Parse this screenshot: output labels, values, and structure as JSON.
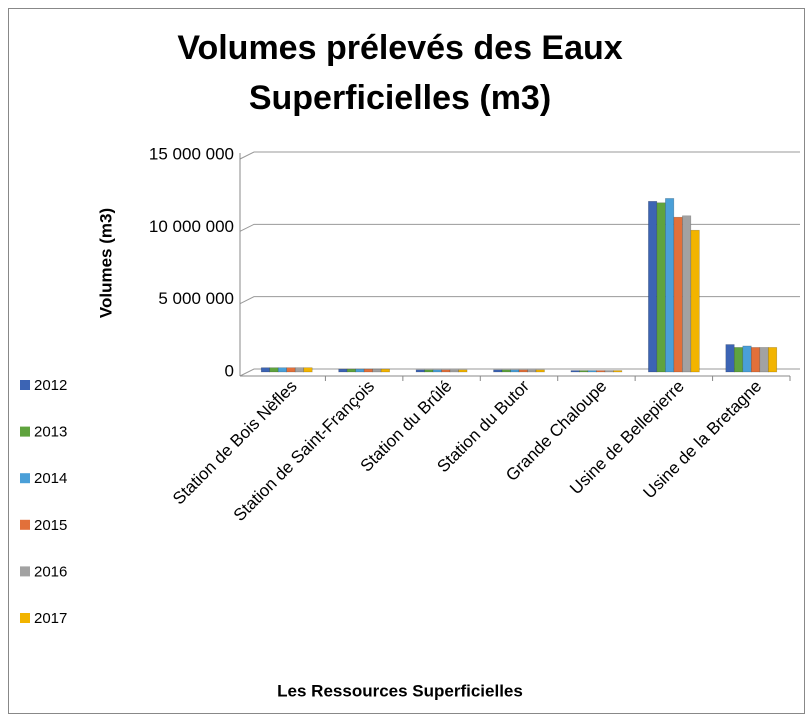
{
  "chart_data": {
    "type": "bar",
    "title": "Volumes prélevés des Eaux Superficielles (m3)",
    "y_label": "Volumes (m3)",
    "x_label": "Les Ressources Superficielles",
    "categories": [
      "Station de Bois Nèfles",
      "Station de Saint-François",
      "Station du Brûlé",
      "Station du Butor",
      "Grande Chaloupe",
      "Usine de Bellepierre",
      "Usine de la Bretagne"
    ],
    "series": [
      {
        "name": "2012",
        "color": "#3c64b4",
        "values": [
          300000,
          200000,
          150000,
          150000,
          100000,
          11800000,
          1900000
        ]
      },
      {
        "name": "2013",
        "color": "#5fa33e",
        "values": [
          300000,
          200000,
          150000,
          150000,
          100000,
          11700000,
          1700000
        ]
      },
      {
        "name": "2014",
        "color": "#4a9fd8",
        "values": [
          300000,
          200000,
          150000,
          150000,
          100000,
          12000000,
          1800000
        ]
      },
      {
        "name": "2015",
        "color": "#e2703a",
        "values": [
          300000,
          200000,
          150000,
          150000,
          100000,
          10700000,
          1700000
        ]
      },
      {
        "name": "2016",
        "color": "#a2a2a2",
        "values": [
          300000,
          200000,
          150000,
          150000,
          100000,
          10800000,
          1700000
        ]
      },
      {
        "name": "2017",
        "color": "#f2b400",
        "values": [
          300000,
          200000,
          150000,
          150000,
          100000,
          9800000,
          1700000
        ]
      }
    ],
    "ylim": [
      0,
      15000000
    ],
    "yticks": [
      0,
      {
        "value": 5000000,
        "label": "5 000 000"
      },
      {
        "value": 10000000,
        "label": "10 000 000"
      },
      {
        "value": 15000000,
        "label": "15 000 000"
      }
    ],
    "grid": true
  }
}
